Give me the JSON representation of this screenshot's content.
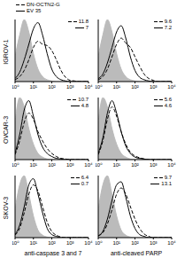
{
  "chart_data": [
    {
      "type": "line",
      "ylabel": "IGROV-1",
      "legend": "top",
      "log": "x",
      "grid": false,
      "tick_labels": "x",
      "x": [
        1,
        1.78,
        3.16,
        5.62,
        10,
        17.8,
        31.6,
        56.2,
        100,
        178,
        316,
        562,
        1000,
        1780,
        3160,
        5620,
        10000
      ],
      "xlim": [
        1,
        10000
      ],
      "xticks": [
        {
          "value": 1,
          "label": "10⁰"
        },
        {
          "value": 10,
          "label": "10¹"
        },
        {
          "value": 100,
          "label": "10²"
        },
        {
          "value": 1000,
          "label": "10³"
        },
        {
          "value": 10000,
          "label": "10⁴"
        }
      ],
      "ylim": [
        0,
        100
      ],
      "series": [
        {
          "type": "area",
          "color": "#bbbbbb",
          "values": [
            40,
            75,
            100,
            80,
            45,
            20,
            8,
            3,
            1,
            0,
            0,
            0,
            0,
            0,
            0,
            0,
            0
          ]
        },
        {
          "name": "DN-OCTN2-G",
          "type": "line",
          "line_style": "dashed",
          "color": "#000000",
          "label_value": 11.8,
          "values": [
            3,
            8,
            18,
            35,
            55,
            65,
            60,
            58,
            50,
            35,
            18,
            7,
            2,
            1,
            0,
            0,
            0
          ]
        },
        {
          "name": "EV 35",
          "type": "line",
          "line_style": "solid",
          "color": "#000000",
          "label_value": 7,
          "values": [
            5,
            15,
            35,
            60,
            85,
            95,
            75,
            45,
            20,
            8,
            3,
            1,
            0,
            0,
            0,
            0,
            0
          ]
        }
      ]
    },
    {
      "type": "line",
      "log": "x",
      "grid": false,
      "tick_labels": "x",
      "x": [
        1,
        1.78,
        3.16,
        5.62,
        10,
        17.8,
        31.6,
        56.2,
        100,
        178,
        316,
        562,
        1000,
        1780,
        3160,
        5620,
        10000
      ],
      "xlim": [
        1,
        10000
      ],
      "xticks": [
        {
          "value": 1,
          "label": "10⁰"
        },
        {
          "value": 10,
          "label": "10¹"
        },
        {
          "value": 100,
          "label": "10²"
        },
        {
          "value": 1000,
          "label": "10³"
        },
        {
          "value": 10000,
          "label": "10⁴"
        }
      ],
      "ylim": [
        0,
        100
      ],
      "series": [
        {
          "type": "area",
          "color": "#bbbbbb",
          "values": [
            40,
            75,
            100,
            80,
            45,
            20,
            8,
            3,
            1,
            0,
            0,
            0,
            0,
            0,
            0,
            0,
            0
          ]
        },
        {
          "type": "line",
          "line_style": "dashed",
          "color": "#000000",
          "label_value": 9.6,
          "values": [
            3,
            8,
            20,
            40,
            60,
            70,
            62,
            55,
            40,
            25,
            12,
            5,
            2,
            0,
            0,
            0,
            0
          ]
        },
        {
          "type": "line",
          "line_style": "solid",
          "color": "#000000",
          "label_value": 7.2,
          "values": [
            5,
            12,
            30,
            55,
            80,
            90,
            70,
            40,
            18,
            7,
            3,
            1,
            0,
            0,
            0,
            0,
            0
          ]
        }
      ]
    },
    {
      "type": "line",
      "ylabel": "OVCAR-3",
      "log": "x",
      "grid": false,
      "tick_labels": "x",
      "x": [
        1,
        1.78,
        3.16,
        5.62,
        10,
        17.8,
        31.6,
        56.2,
        100,
        178,
        316,
        562,
        1000,
        1780,
        3160,
        5620,
        10000
      ],
      "xlim": [
        1,
        10000
      ],
      "xticks": [
        {
          "value": 1,
          "label": "10⁰"
        },
        {
          "value": 10,
          "label": "10¹"
        },
        {
          "value": 100,
          "label": "10²"
        },
        {
          "value": 1000,
          "label": "10³"
        },
        {
          "value": 10000,
          "label": "10⁴"
        }
      ],
      "ylim": [
        0,
        100
      ],
      "series": [
        {
          "type": "area",
          "color": "#bbbbbb",
          "values": [
            60,
            100,
            85,
            50,
            25,
            10,
            4,
            1,
            0,
            0,
            0,
            0,
            0,
            0,
            0,
            0,
            0
          ]
        },
        {
          "type": "line",
          "line_style": "dashed",
          "color": "#000000",
          "label_value": 10.7,
          "values": [
            8,
            30,
            60,
            75,
            65,
            45,
            30,
            18,
            10,
            5,
            2,
            1,
            0,
            0,
            0,
            0,
            0
          ]
        },
        {
          "type": "line",
          "line_style": "solid",
          "color": "#000000",
          "label_value": 4.8,
          "values": [
            10,
            40,
            80,
            95,
            70,
            40,
            20,
            10,
            5,
            2,
            1,
            0,
            0,
            0,
            0,
            0,
            0
          ]
        }
      ]
    },
    {
      "type": "line",
      "log": "x",
      "grid": false,
      "tick_labels": "x",
      "x": [
        1,
        1.78,
        3.16,
        5.62,
        10,
        17.8,
        31.6,
        56.2,
        100,
        178,
        316,
        562,
        1000,
        1780,
        3160,
        5620,
        10000
      ],
      "xlim": [
        1,
        10000
      ],
      "xticks": [
        {
          "value": 1,
          "label": "10⁰"
        },
        {
          "value": 10,
          "label": "10¹"
        },
        {
          "value": 100,
          "label": "10²"
        },
        {
          "value": 1000,
          "label": "10³"
        },
        {
          "value": 10000,
          "label": "10⁴"
        }
      ],
      "ylim": [
        0,
        100
      ],
      "series": [
        {
          "type": "area",
          "color": "#bbbbbb",
          "values": [
            60,
            100,
            85,
            50,
            25,
            10,
            4,
            1,
            0,
            0,
            0,
            0,
            0,
            0,
            0,
            0,
            0
          ]
        },
        {
          "type": "line",
          "line_style": "dashed",
          "color": "#000000",
          "label_value": 5.6,
          "values": [
            8,
            30,
            65,
            85,
            70,
            45,
            25,
            12,
            6,
            3,
            1,
            0,
            0,
            0,
            0,
            0,
            0
          ]
        },
        {
          "type": "line",
          "line_style": "solid",
          "color": "#000000",
          "label_value": 4.6,
          "values": [
            10,
            35,
            75,
            95,
            75,
            45,
            22,
            10,
            4,
            2,
            1,
            0,
            0,
            0,
            0,
            0,
            0
          ]
        }
      ]
    },
    {
      "type": "line",
      "ylabel": "SKOV-3",
      "xlabel": "anti-caspase 3 and 7",
      "log": "x",
      "grid": false,
      "tick_labels": "x",
      "x": [
        1,
        1.78,
        3.16,
        5.62,
        10,
        17.8,
        31.6,
        56.2,
        100,
        178,
        316,
        562,
        1000,
        1780,
        3160,
        5620,
        10000
      ],
      "xlim": [
        1,
        10000
      ],
      "xticks": [
        {
          "value": 1,
          "label": "10⁰"
        },
        {
          "value": 10,
          "label": "10¹"
        },
        {
          "value": 100,
          "label": "10²"
        },
        {
          "value": 1000,
          "label": "10³"
        },
        {
          "value": 10000,
          "label": "10⁴"
        }
      ],
      "ylim": [
        0,
        100
      ],
      "series": [
        {
          "type": "area",
          "color": "#bbbbbb",
          "values": [
            45,
            85,
            100,
            70,
            35,
            12,
            4,
            1,
            0,
            0,
            0,
            0,
            0,
            0,
            0,
            0,
            0
          ]
        },
        {
          "type": "line",
          "line_style": "dashed",
          "color": "#000000",
          "label_value": 6.4,
          "values": [
            4,
            15,
            40,
            70,
            85,
            75,
            50,
            25,
            10,
            4,
            1,
            0,
            0,
            0,
            0,
            0,
            0
          ]
        },
        {
          "type": "line",
          "line_style": "solid",
          "color": "#000000",
          "label_value": 0.7,
          "values": [
            5,
            20,
            50,
            85,
            95,
            70,
            40,
            15,
            5,
            2,
            0,
            0,
            0,
            0,
            0,
            0,
            0
          ]
        }
      ]
    },
    {
      "type": "line",
      "xlabel": "anti-cleaved PARP",
      "log": "x",
      "grid": false,
      "tick_labels": "x",
      "x": [
        1,
        1.78,
        3.16,
        5.62,
        10,
        17.8,
        31.6,
        56.2,
        100,
        178,
        316,
        562,
        1000,
        1780,
        3160,
        5620,
        10000
      ],
      "xlim": [
        1,
        10000
      ],
      "xticks": [
        {
          "value": 1,
          "label": "10⁰"
        },
        {
          "value": 10,
          "label": "10¹"
        },
        {
          "value": 100,
          "label": "10²"
        },
        {
          "value": 1000,
          "label": "10³"
        },
        {
          "value": 10000,
          "label": "10⁴"
        }
      ],
      "ylim": [
        0,
        100
      ],
      "series": [
        {
          "type": "area",
          "color": "#bbbbbb",
          "values": [
            45,
            85,
            100,
            70,
            35,
            12,
            4,
            1,
            0,
            0,
            0,
            0,
            0,
            0,
            0,
            0,
            0
          ]
        },
        {
          "type": "line",
          "line_style": "dashed",
          "color": "#000000",
          "label_value": 9.7,
          "values": [
            3,
            8,
            22,
            45,
            70,
            80,
            70,
            50,
            30,
            15,
            6,
            2,
            0,
            0,
            0,
            0,
            0
          ]
        },
        {
          "type": "line",
          "line_style": "solid",
          "color": "#000000",
          "label_value": 13.1,
          "values": [
            3,
            10,
            30,
            60,
            85,
            90,
            65,
            35,
            15,
            5,
            2,
            0,
            0,
            0,
            0,
            0,
            0
          ]
        }
      ]
    }
  ]
}
